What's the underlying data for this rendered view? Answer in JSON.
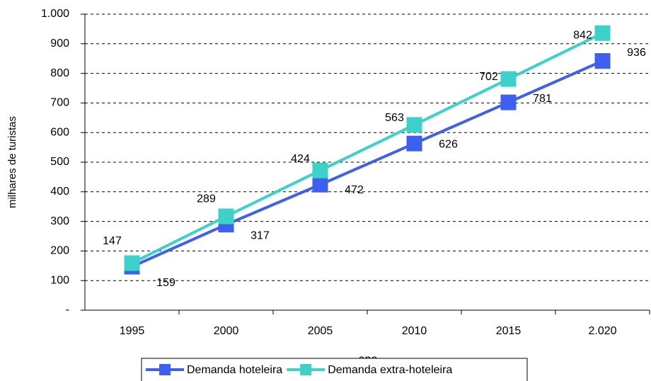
{
  "chart_data": {
    "type": "line",
    "y_label": "milhares de turistas",
    "x_label": "ano",
    "categories": [
      "1995",
      "2000",
      "2005",
      "2010",
      "2015",
      "2.020"
    ],
    "series": [
      {
        "name": "Demanda hoteleira",
        "color": "#3f5fef",
        "values": [
          147,
          289,
          424,
          563,
          702,
          842
        ]
      },
      {
        "name": "Demanda extra-hoteleira",
        "color": "#3ed1c9",
        "values": [
          159,
          317,
          472,
          626,
          781,
          936
        ]
      }
    ],
    "ylim": [
      0,
      1000
    ],
    "yticks": [
      {
        "value": 0,
        "label": "-"
      },
      100,
      200,
      300,
      400,
      500,
      600,
      700,
      800,
      900,
      {
        "value": 1000,
        "label": "1.000"
      }
    ],
    "grid": true,
    "legend": "bottom"
  }
}
